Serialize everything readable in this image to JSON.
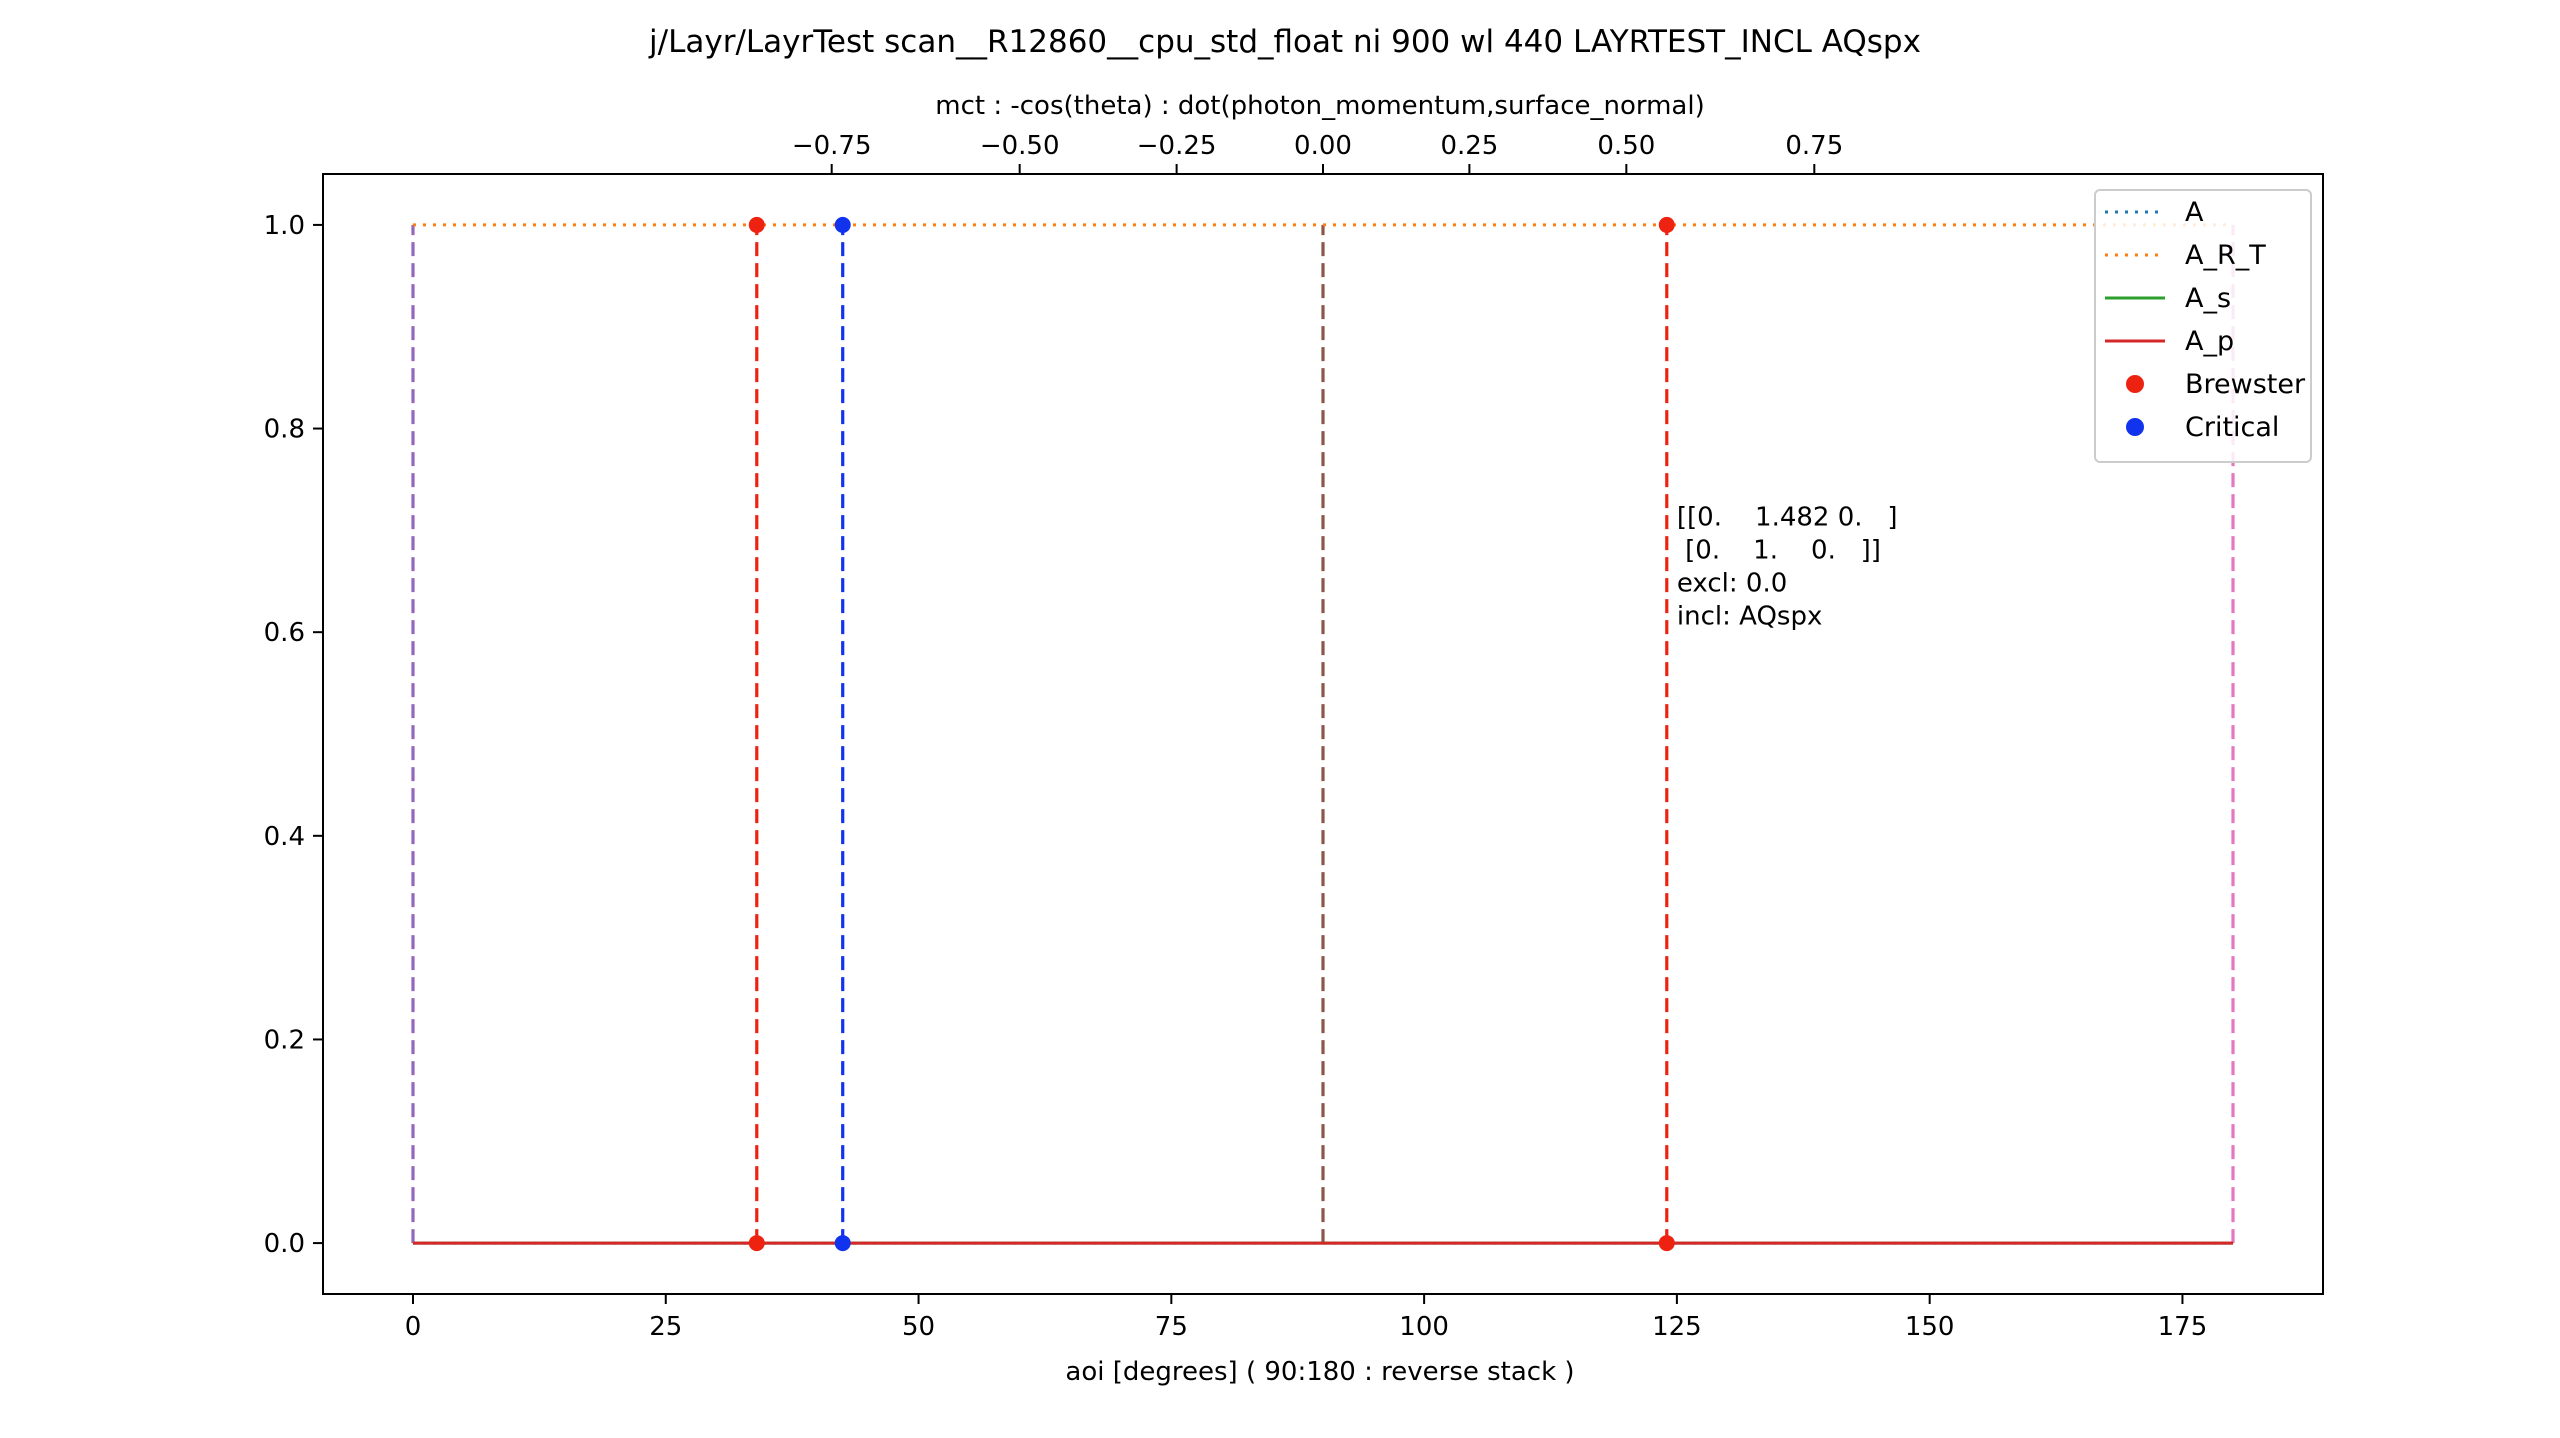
{
  "chart_data": {
    "type": "line",
    "title": "j/Layr/LayrTest scan__R12860__cpu_std_float ni 900 wl 440 LAYRTEST_INCL AQspx",
    "xlabel": "aoi [degrees] ( 90:180 : reverse stack )",
    "ylabel": "",
    "x2label": "mct : -cos(theta) : dot(photon_momentum,surface_normal)",
    "xlim": [
      -8.9,
      188.9
    ],
    "ylim": [
      -0.05,
      1.05
    ],
    "xticks": [
      0,
      25,
      50,
      75,
      100,
      125,
      150,
      175
    ],
    "xtick_labels": [
      "0",
      "25",
      "50",
      "75",
      "100",
      "125",
      "150",
      "175"
    ],
    "yticks": [
      0.0,
      0.2,
      0.4,
      0.6,
      0.8,
      1.0
    ],
    "ytick_labels": [
      "0.0",
      "0.2",
      "0.4",
      "0.6",
      "0.8",
      "1.0"
    ],
    "x2ticks": [
      -0.75,
      -0.5,
      -0.25,
      0.0,
      0.25,
      0.5,
      0.75
    ],
    "x2tick_labels": [
      "−0.75",
      "−0.50",
      "−0.25",
      "0.00",
      "0.25",
      "0.50",
      "0.75"
    ],
    "grid": false,
    "legend_position": "top-right",
    "series": [
      {
        "name": "A",
        "style": "dotted",
        "color": "#1f77b4",
        "x": [
          0,
          180
        ],
        "y": [
          0,
          0
        ]
      },
      {
        "name": "A_R_T",
        "style": "dotted",
        "color": "#ff7f0e",
        "x": [
          0,
          180
        ],
        "y": [
          1.0,
          1.0
        ]
      },
      {
        "name": "A_s",
        "style": "solid",
        "color": "#2ca02c",
        "x": [
          0,
          180
        ],
        "y": [
          0,
          0
        ]
      },
      {
        "name": "A_p",
        "style": "solid",
        "color": "#d62728",
        "x": [
          0,
          180
        ],
        "y": [
          0,
          0
        ]
      }
    ],
    "vlines": [
      {
        "x": 0,
        "color": "#9467bd"
      },
      {
        "x": 34.0,
        "color": "#ee2211"
      },
      {
        "x": 42.5,
        "color": "#1133ee"
      },
      {
        "x": 90,
        "color": "#8c564b"
      },
      {
        "x": 124.0,
        "color": "#ee2211"
      },
      {
        "x": 180,
        "color": "#e377c2"
      }
    ],
    "markers": [
      {
        "name": "Brewster",
        "color": "#ee2211",
        "points": [
          [
            34.0,
            0
          ],
          [
            34.0,
            1.0
          ],
          [
            124.0,
            0
          ],
          [
            124.0,
            1.0
          ]
        ]
      },
      {
        "name": "Critical",
        "color": "#1133ee",
        "points": [
          [
            42.5,
            0
          ],
          [
            42.5,
            1.0
          ]
        ]
      }
    ],
    "legend": [
      {
        "label": "A",
        "kind": "dotted",
        "color": "#1f77b4"
      },
      {
        "label": "A_R_T",
        "kind": "dotted",
        "color": "#ff7f0e"
      },
      {
        "label": "A_s",
        "kind": "solid",
        "color": "#2ca02c"
      },
      {
        "label": "A_p",
        "kind": "solid",
        "color": "#d62728"
      },
      {
        "label": "Brewster",
        "kind": "marker",
        "color": "#ee2211"
      },
      {
        "label": "Critical",
        "kind": "marker",
        "color": "#1133ee"
      }
    ],
    "annotation": {
      "x": 125.0,
      "y": 0.705,
      "lines": [
        "[[0.    1.482 0.   ]",
        " [0.    1.    0.   ]]",
        "excl: 0.0",
        "incl: AQspx"
      ]
    }
  }
}
